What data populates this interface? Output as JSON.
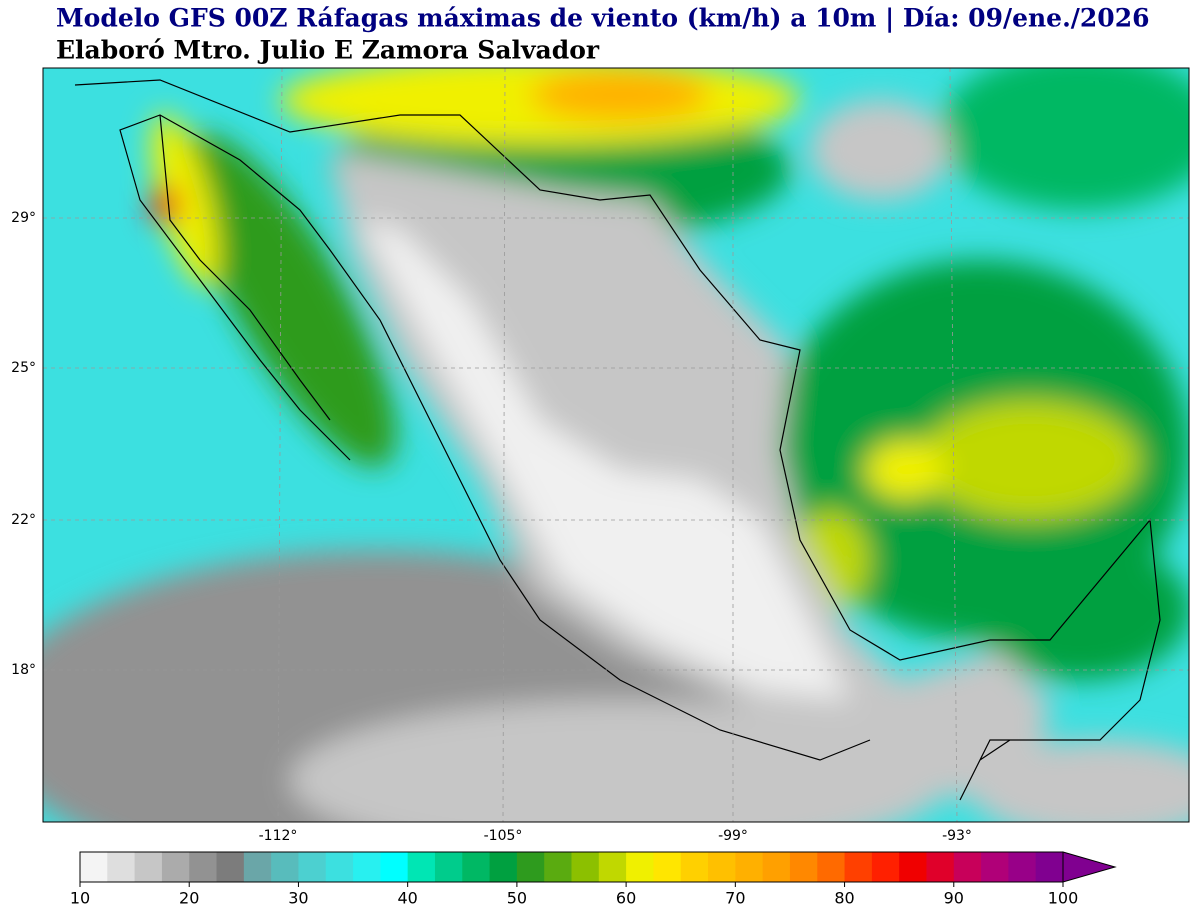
{
  "header": {
    "title": "Modelo GFS 00Z Ráfagas máximas de viento (km/h) a 10m | Día: 09/ene./2026",
    "subtitle": "Elaboró Mtro. Julio E Zamora Salvador"
  },
  "map": {
    "latitude_labels": [
      "29°",
      "25°",
      "22°",
      "18°"
    ],
    "longitude_labels": [
      "-112°",
      "-105°",
      "-99°",
      "-93°"
    ]
  },
  "colorbar": {
    "range": [
      10,
      100
    ],
    "ticks": [
      10,
      20,
      30,
      40,
      50,
      60,
      70,
      80,
      90,
      100
    ],
    "colors": [
      "#f4f4f4",
      "#dedede",
      "#c6c6c6",
      "#ababab",
      "#929292",
      "#7c7c7c",
      "#6aa6a8",
      "#58bcbc",
      "#4cd0d0",
      "#3ce0e0",
      "#28f0f0",
      "#00ffff",
      "#00e6b4",
      "#00cc8c",
      "#00b864",
      "#00a040",
      "#2e9b1e",
      "#5aab10",
      "#8cc000",
      "#c0d800",
      "#f0f000",
      "#ffe600",
      "#ffd000",
      "#ffc000",
      "#ffb000",
      "#ffa000",
      "#ff8800",
      "#ff6a00",
      "#ff4000",
      "#ff2000",
      "#f00000",
      "#e0002a",
      "#c8005a",
      "#b00078",
      "#980088",
      "#800090"
    ]
  }
}
